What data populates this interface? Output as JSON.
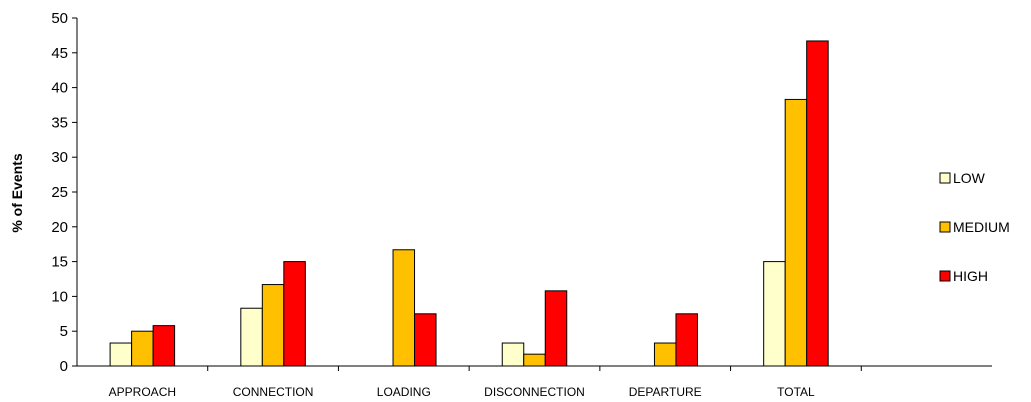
{
  "chart_data": {
    "type": "bar",
    "title": "",
    "xlabel": "",
    "ylabel": "% of Events",
    "ylim": [
      0,
      50
    ],
    "yticks": [
      "0",
      "5",
      "10",
      "15",
      "20",
      "25",
      "30",
      "35",
      "40",
      "45",
      "50"
    ],
    "grid": false,
    "legend_position": "right",
    "categories": [
      "APPROACH",
      "CONNECTION",
      "LOADING",
      "DISCONNECTION",
      "DEPARTURE",
      "TOTAL"
    ],
    "series": [
      {
        "name": "LOW",
        "color": "#FFFFCC",
        "values": [
          3.3,
          8.3,
          0,
          3.3,
          0,
          15.0
        ]
      },
      {
        "name": "MEDIUM",
        "color": "#FFC000",
        "values": [
          5.0,
          11.7,
          16.7,
          1.7,
          3.3,
          38.3
        ]
      },
      {
        "name": "HIGH",
        "color": "#FF0000",
        "values": [
          5.8,
          15.0,
          7.5,
          10.8,
          7.5,
          46.7
        ]
      }
    ]
  }
}
